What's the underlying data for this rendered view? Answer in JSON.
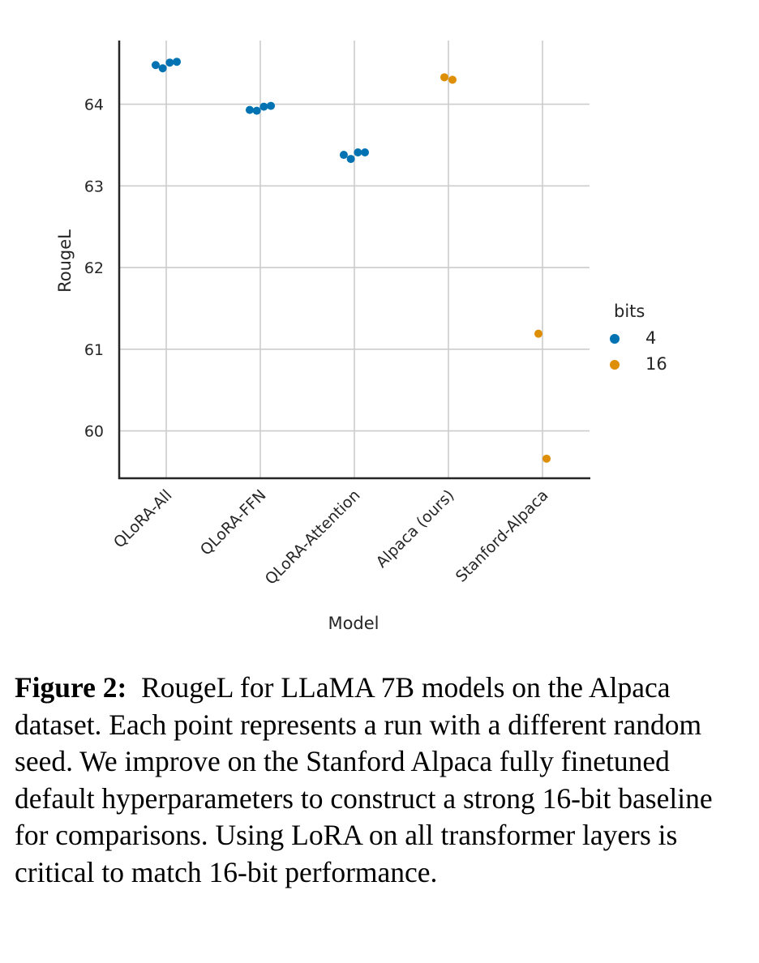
{
  "chart_data": {
    "type": "scatter",
    "title": "",
    "xlabel": "Model",
    "ylabel": "RougeL",
    "categories": [
      "QLoRA-All",
      "QLoRA-FFN",
      "QLoRA-Attention",
      "Alpaca (ours)",
      "Stanford-Alpaca"
    ],
    "yticks": [
      60,
      61,
      62,
      63,
      64
    ],
    "ylim": [
      59.42,
      64.78
    ],
    "grid": true,
    "legend": {
      "title": "bits",
      "placement": "right",
      "entries": [
        {
          "label": "4",
          "color": "#0173b2"
        },
        {
          "label": "16",
          "color": "#de8f05"
        }
      ]
    },
    "series": [
      {
        "name": "4",
        "color": "#0173b2",
        "points": [
          {
            "category": "QLoRA-All",
            "values": [
              64.48,
              64.44,
              64.51,
              64.52
            ]
          },
          {
            "category": "QLoRA-FFN",
            "values": [
              63.93,
              63.92,
              63.97,
              63.98
            ]
          },
          {
            "category": "QLoRA-Attention",
            "values": [
              63.38,
              63.33,
              63.41,
              63.41
            ]
          }
        ]
      },
      {
        "name": "16",
        "color": "#de8f05",
        "points": [
          {
            "category": "Alpaca (ours)",
            "values": [
              64.33,
              64.3
            ]
          },
          {
            "category": "Stanford-Alpaca",
            "values": [
              61.19,
              59.66
            ]
          }
        ]
      }
    ]
  },
  "caption": {
    "label": "Figure 2:",
    "text": "RougeL for LLaMA 7B models on the Alpaca dataset. Each point represents a run with a different random seed. We improve on the Stanford Alpaca fully finetuned default hyperparameters to construct a strong 16-bit baseline for comparisons. Using LoRA on all transformer layers is critical to match 16-bit performance."
  }
}
